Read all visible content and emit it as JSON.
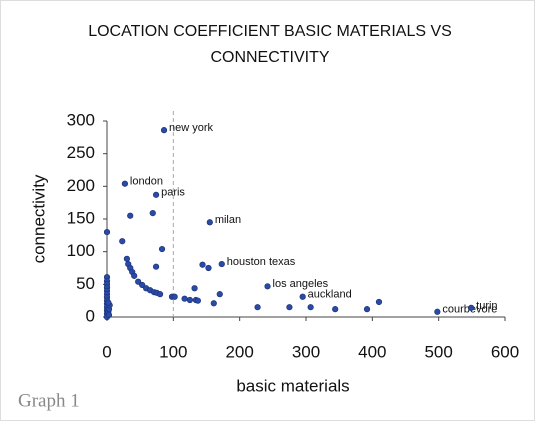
{
  "chart_data": {
    "type": "scatter",
    "title_lines": [
      "LOCATION COEFFICIENT BASIC MATERIALS VS",
      "CONNECTIVITY"
    ],
    "xlabel": "basic materials",
    "ylabel": "connectivity",
    "caption": "Graph 1",
    "color": "#2a4aa8",
    "vline": 100,
    "xlim": [
      0,
      600
    ],
    "ylim": [
      0,
      300
    ],
    "xticks": [
      0,
      100,
      200,
      300,
      400,
      500,
      600
    ],
    "yticks": [
      0,
      50,
      100,
      150,
      200,
      250,
      300
    ],
    "series": [
      {
        "name": "cities",
        "x": [
          86,
          27,
          74,
          155,
          173,
          242,
          295,
          498,
          549,
          0,
          23,
          35,
          69,
          83,
          74,
          30,
          32,
          35,
          38,
          41,
          47,
          53,
          59,
          65,
          71,
          75,
          80,
          98,
          102,
          117,
          125,
          134,
          137,
          144,
          153,
          132,
          170,
          161,
          227,
          275,
          307,
          344,
          392,
          410,
          0,
          0,
          0,
          0,
          0,
          0,
          0,
          0,
          0,
          0,
          0,
          0,
          0,
          2,
          3,
          4,
          2,
          3
        ],
        "values": [
          286,
          204,
          187,
          145,
          81,
          47,
          31,
          8,
          14,
          130,
          116,
          155,
          159,
          104,
          77,
          89,
          81,
          75,
          69,
          63,
          54,
          49,
          44,
          41,
          38,
          37,
          35,
          31,
          31,
          28,
          26,
          26,
          25,
          80,
          75,
          44,
          35,
          21,
          15,
          15,
          15,
          12,
          12,
          23,
          61,
          55,
          50,
          45,
          40,
          35,
          30,
          25,
          20,
          15,
          10,
          5,
          0,
          8,
          12,
          18,
          22,
          3
        ],
        "labels": [
          "new york",
          "london",
          "paris",
          "milan",
          "houston texas",
          "los angeles",
          "auckland",
          "courbevore",
          "turin",
          null,
          null,
          null,
          null,
          null,
          null,
          null,
          null,
          null,
          null,
          null,
          null,
          null,
          null,
          null,
          null,
          null,
          null,
          null,
          null,
          null,
          null,
          null,
          null,
          null,
          null,
          null,
          null,
          null,
          null,
          null,
          null,
          null,
          null,
          null,
          null,
          null,
          null,
          null,
          null,
          null,
          null,
          null,
          null,
          null,
          null,
          null,
          null,
          null,
          null,
          null,
          null,
          null
        ]
      }
    ]
  }
}
